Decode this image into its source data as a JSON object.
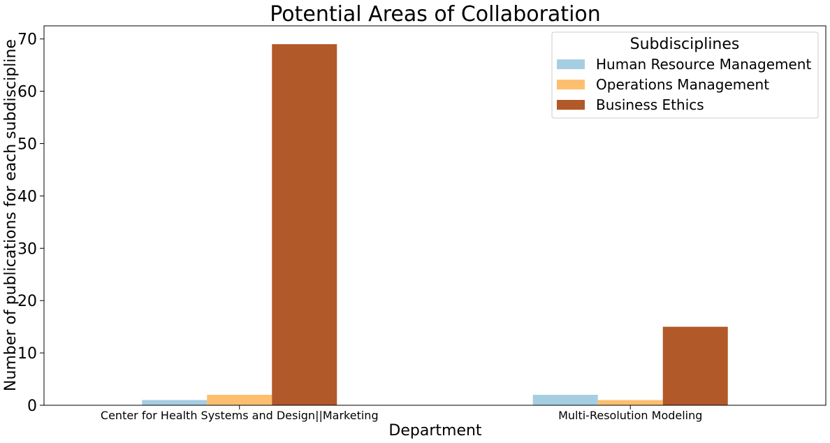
{
  "chart_data": {
    "type": "bar",
    "title": "Potential Areas of Collaboration",
    "xlabel": "Department",
    "ylabel": "Number of publications for each subdiscipline",
    "categories": [
      "Center for Health Systems and Design||Marketing",
      "Multi-Resolution Modeling"
    ],
    "series": [
      {
        "name": "Human Resource Management",
        "color": "#a6cee3",
        "values": [
          1,
          2
        ]
      },
      {
        "name": "Operations Management",
        "color": "#fdbf6f",
        "values": [
          2,
          1
        ]
      },
      {
        "name": "Business Ethics",
        "color": "#b15928",
        "values": [
          69,
          15
        ]
      }
    ],
    "ylim": [
      0,
      72.5
    ],
    "yticks": [
      0,
      10,
      20,
      30,
      40,
      50,
      60,
      70
    ],
    "legend": {
      "title": "Subdisciplines",
      "placement": "top-right"
    },
    "grid": false
  }
}
